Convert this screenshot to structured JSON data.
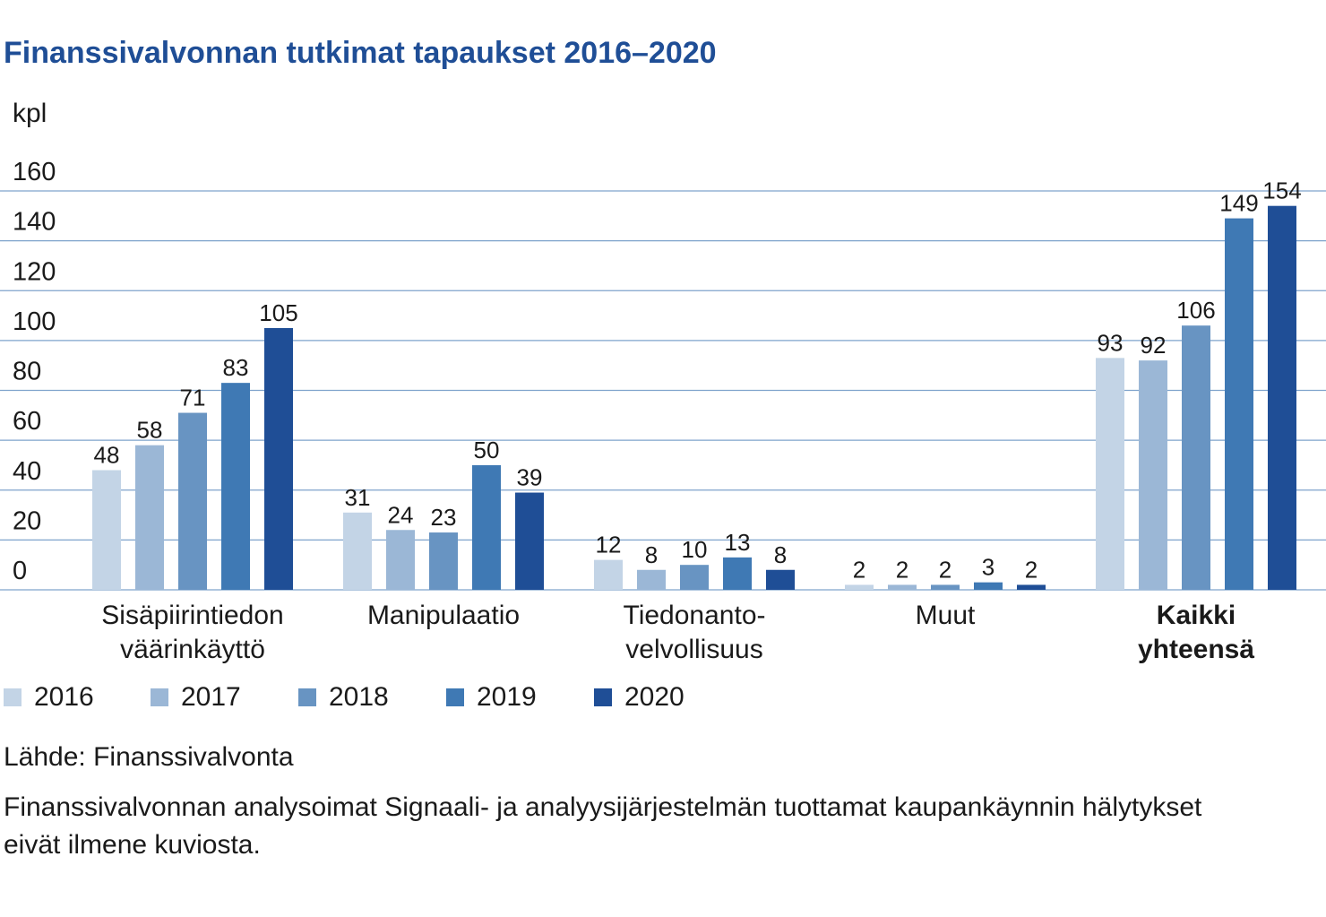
{
  "title": "Finanssivalvonnan tutkimat tapaukset 2016–2020",
  "unit_label": "kpl",
  "source": "Lähde: Finanssivalvonta",
  "note": "Finanssivalvonnan analysoimat Signaali- ja analyysijärjestelmän tuottamat kaupankäynnin hälytykset eivät ilmene kuviosta.",
  "chart_data": {
    "type": "bar",
    "title": "Finanssivalvonnan tutkimat tapaukset 2016–2020",
    "ylabel": "kpl",
    "xlabel": "",
    "ylim": [
      0,
      160
    ],
    "yticks": [
      0,
      20,
      40,
      60,
      80,
      100,
      120,
      140,
      160
    ],
    "grid": true,
    "legend_position": "bottom",
    "categories": [
      {
        "lines": [
          "Sisäpiirintiedon",
          "väärinkäyttö"
        ],
        "bold": false
      },
      {
        "lines": [
          "Manipulaatio"
        ],
        "bold": false
      },
      {
        "lines": [
          "Tiedonanto-",
          "velvollisuus"
        ],
        "bold": false
      },
      {
        "lines": [
          "Muut"
        ],
        "bold": false
      },
      {
        "lines": [
          "Kaikki",
          "yhteensä"
        ],
        "bold": true
      }
    ],
    "series": [
      {
        "name": "2016",
        "color": "#c3d4e6",
        "values": [
          48,
          31,
          12,
          2,
          93
        ]
      },
      {
        "name": "2017",
        "color": "#9bb7d6",
        "values": [
          58,
          24,
          8,
          2,
          92
        ]
      },
      {
        "name": "2018",
        "color": "#6894c2",
        "values": [
          71,
          23,
          10,
          2,
          106
        ]
      },
      {
        "name": "2019",
        "color": "#3f79b4",
        "values": [
          83,
          50,
          13,
          3,
          149
        ]
      },
      {
        "name": "2020",
        "color": "#1f4e96",
        "values": [
          105,
          39,
          8,
          2,
          154
        ]
      }
    ]
  }
}
